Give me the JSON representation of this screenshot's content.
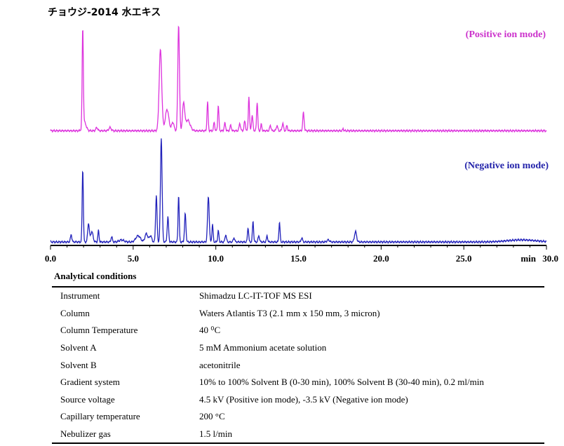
{
  "title": "チョウジ-2014 水エキス",
  "chart_data": {
    "type": "line",
    "xlabel": "min",
    "xlim": [
      0,
      30
    ],
    "x_ticks": [
      "0.0",
      "5.0",
      "10.0",
      "15.0",
      "20.0",
      "25.0",
      "30.0"
    ],
    "series": [
      {
        "name": "(Positive ion mode)",
        "color": "#dd33dd",
        "baseline": 0.01,
        "peaks": [
          [
            1.95,
            0.92,
            0.05
          ],
          [
            2.05,
            0.08,
            0.15
          ],
          [
            2.8,
            0.03,
            0.08
          ],
          [
            3.6,
            0.03,
            0.1
          ],
          [
            6.65,
            0.76,
            0.11
          ],
          [
            7.05,
            0.2,
            0.15
          ],
          [
            7.4,
            0.08,
            0.1
          ],
          [
            7.75,
            1.0,
            0.07
          ],
          [
            8.05,
            0.25,
            0.09
          ],
          [
            8.3,
            0.1,
            0.2
          ],
          [
            9.5,
            0.27,
            0.05
          ],
          [
            9.9,
            0.08,
            0.05
          ],
          [
            10.15,
            0.24,
            0.05
          ],
          [
            10.55,
            0.07,
            0.06
          ],
          [
            10.9,
            0.05,
            0.06
          ],
          [
            11.45,
            0.07,
            0.06
          ],
          [
            11.75,
            0.09,
            0.06
          ],
          [
            12.0,
            0.32,
            0.05
          ],
          [
            12.2,
            0.14,
            0.06
          ],
          [
            12.5,
            0.27,
            0.05
          ],
          [
            12.75,
            0.06,
            0.05
          ],
          [
            13.3,
            0.05,
            0.06
          ],
          [
            13.7,
            0.05,
            0.06
          ],
          [
            14.05,
            0.07,
            0.06
          ],
          [
            14.3,
            0.05,
            0.05
          ],
          [
            15.3,
            0.17,
            0.06
          ],
          [
            17.7,
            0.02,
            0.04
          ]
        ]
      },
      {
        "name": "(Negative ion mode)",
        "color": "#2222bb",
        "baseline": 0.02,
        "peaks": [
          [
            1.25,
            0.07,
            0.06
          ],
          [
            1.95,
            0.7,
            0.05
          ],
          [
            2.3,
            0.18,
            0.07
          ],
          [
            2.5,
            0.1,
            0.1
          ],
          [
            2.9,
            0.11,
            0.05
          ],
          [
            3.7,
            0.05,
            0.06
          ],
          [
            4.3,
            0.02,
            0.2
          ],
          [
            5.3,
            0.06,
            0.2
          ],
          [
            5.8,
            0.08,
            0.12
          ],
          [
            6.05,
            0.06,
            0.1
          ],
          [
            6.4,
            0.45,
            0.06
          ],
          [
            6.7,
            1.0,
            0.07
          ],
          [
            7.1,
            0.24,
            0.06
          ],
          [
            7.75,
            0.45,
            0.05
          ],
          [
            8.15,
            0.27,
            0.06
          ],
          [
            9.55,
            0.44,
            0.07
          ],
          [
            9.8,
            0.17,
            0.05
          ],
          [
            10.15,
            0.11,
            0.05
          ],
          [
            10.6,
            0.07,
            0.06
          ],
          [
            11.1,
            0.04,
            0.06
          ],
          [
            11.95,
            0.14,
            0.05
          ],
          [
            12.25,
            0.2,
            0.05
          ],
          [
            12.6,
            0.06,
            0.06
          ],
          [
            13.1,
            0.06,
            0.05
          ],
          [
            13.85,
            0.19,
            0.05
          ],
          [
            15.2,
            0.04,
            0.06
          ],
          [
            16.8,
            0.02,
            0.1
          ],
          [
            18.45,
            0.1,
            0.09
          ],
          [
            28.5,
            0.02,
            1.2
          ]
        ]
      }
    ]
  },
  "conditions": {
    "heading": "Analytical conditions",
    "rows": [
      {
        "key": "Instrument",
        "value": "Shimadzu LC-IT-TOF MS ESI"
      },
      {
        "key": "Column",
        "value": "Waters Atlantis T3 (2.1 mm x 150 mm, 3 micron)"
      },
      {
        "key": "Column Temperature",
        "value": "40 ⁰C"
      },
      {
        "key": "Solvent A",
        "value": "5 mM Ammonium acetate solution"
      },
      {
        "key": "Solvent B",
        "value": "acetonitrile"
      },
      {
        "key": "Gradient system",
        "value": "10% to 100% Solvent B (0-30 min), 100% Solvent B (30-40 min), 0.2 ml/min"
      },
      {
        "key": "Source voltage",
        "value": "4.5 kV (Positive ion mode), -3.5 kV (Negative ion mode)"
      },
      {
        "key": "Capillary temperature",
        "value": "200 °C"
      },
      {
        "key": "Nebulizer gas",
        "value": "1.5 l/min"
      }
    ]
  }
}
